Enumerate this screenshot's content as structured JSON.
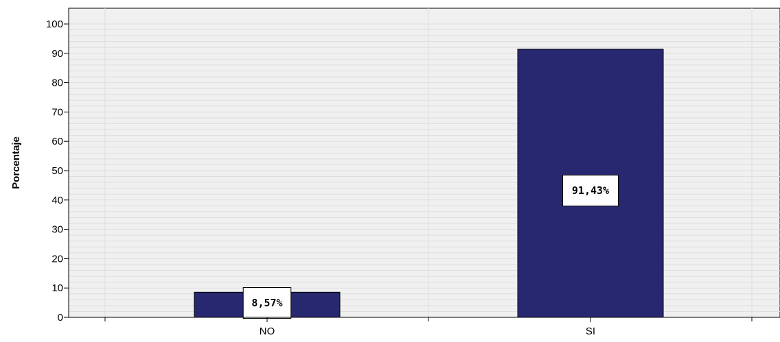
{
  "chart_data": {
    "type": "bar",
    "categories": [
      "NO",
      "SI"
    ],
    "values": [
      8.57,
      91.43
    ],
    "data_labels": [
      "8,57%",
      "91,43%"
    ],
    "title": "",
    "xlabel": "",
    "ylabel": "Porcentaje",
    "ylim": [
      0,
      100
    ],
    "yticks": [
      0,
      10,
      20,
      30,
      40,
      50,
      60,
      70,
      80,
      90,
      100
    ],
    "ytick_labels": [
      "0",
      "10",
      "20",
      "30",
      "40",
      "50",
      "60",
      "70",
      "80",
      "90",
      "100"
    ],
    "grid": true,
    "legend": "none",
    "colors": {
      "bar": "#282870",
      "plot_background": "#f0f0f0",
      "gridline": "#dedede"
    }
  }
}
